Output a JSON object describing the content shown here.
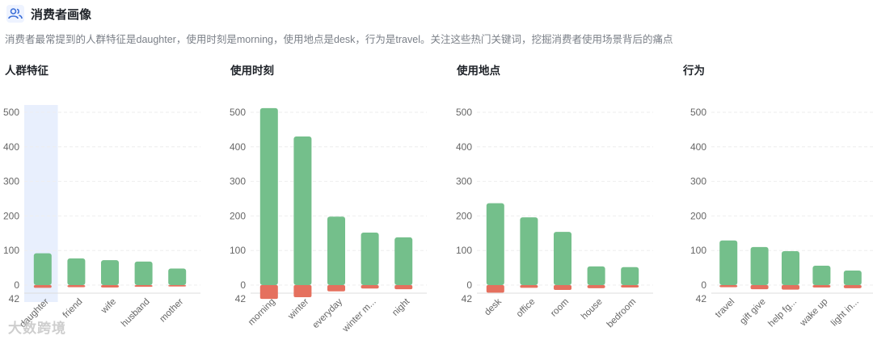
{
  "header": {
    "title": "消费者画像",
    "description": "消费者最常提到的人群特征是daughter，使用时刻是morning，使用地点是desk，行为是travel。关注这些热门关键词，挖掘消费者使用场景背后的痛点"
  },
  "colors": {
    "positive": "#74bf8b",
    "negative": "#e5705e",
    "highlight": "#e8effd",
    "grid": "#eeeeee"
  },
  "watermark": "大数跨境",
  "chart_data": [
    {
      "type": "bar",
      "title": "人群特征",
      "categories": [
        "daughter",
        "friend",
        "wife",
        "husband",
        "mother"
      ],
      "category_labels": [
        "daughter",
        "friend",
        "wife",
        "husband",
        "mother"
      ],
      "series": [
        {
          "values": [
            92,
            77,
            72,
            68,
            48
          ]
        },
        {
          "values": [
            -8,
            -6,
            -7,
            -5,
            -4
          ]
        }
      ],
      "ylim": [
        -42,
        500
      ],
      "yticks": [
        0,
        100,
        200,
        300,
        400,
        500
      ],
      "bottom_label": "42",
      "highlight_index": 0
    },
    {
      "type": "bar",
      "title": "使用时刻",
      "categories": [
        "morning",
        "winter",
        "everyday",
        "winter m...",
        "night"
      ],
      "category_labels": [
        "morning",
        "winter",
        "everyday",
        "winter m...",
        "night"
      ],
      "series": [
        {
          "values": [
            512,
            430,
            198,
            152,
            138
          ]
        },
        {
          "values": [
            -40,
            -35,
            -18,
            -10,
            -12
          ]
        }
      ],
      "ylim": [
        -42,
        500
      ],
      "yticks": [
        0,
        100,
        200,
        300,
        400,
        500
      ],
      "bottom_label": "42"
    },
    {
      "type": "bar",
      "title": "使用地点",
      "categories": [
        "desk",
        "office",
        "room",
        "house",
        "bedroom"
      ],
      "category_labels": [
        "desk",
        "office",
        "room",
        "house",
        "bedroom"
      ],
      "series": [
        {
          "values": [
            237,
            196,
            154,
            54,
            52
          ]
        },
        {
          "values": [
            -22,
            -8,
            -14,
            -9,
            -7
          ]
        }
      ],
      "ylim": [
        -42,
        500
      ],
      "yticks": [
        0,
        100,
        200,
        300,
        400,
        500
      ],
      "bottom_label": "42"
    },
    {
      "type": "bar",
      "title": "行为",
      "categories": [
        "travel",
        "gift give",
        "help fg...",
        "wake up",
        "light in..."
      ],
      "category_labels": [
        "travel",
        "gift give",
        "help fg...",
        "wake up",
        "light in..."
      ],
      "series": [
        {
          "values": [
            129,
            110,
            98,
            56,
            42
          ]
        },
        {
          "values": [
            -6,
            -12,
            -13,
            -7,
            -9
          ]
        }
      ],
      "ylim": [
        -42,
        500
      ],
      "yticks": [
        0,
        100,
        200,
        300,
        400,
        500
      ],
      "bottom_label": "42"
    }
  ]
}
